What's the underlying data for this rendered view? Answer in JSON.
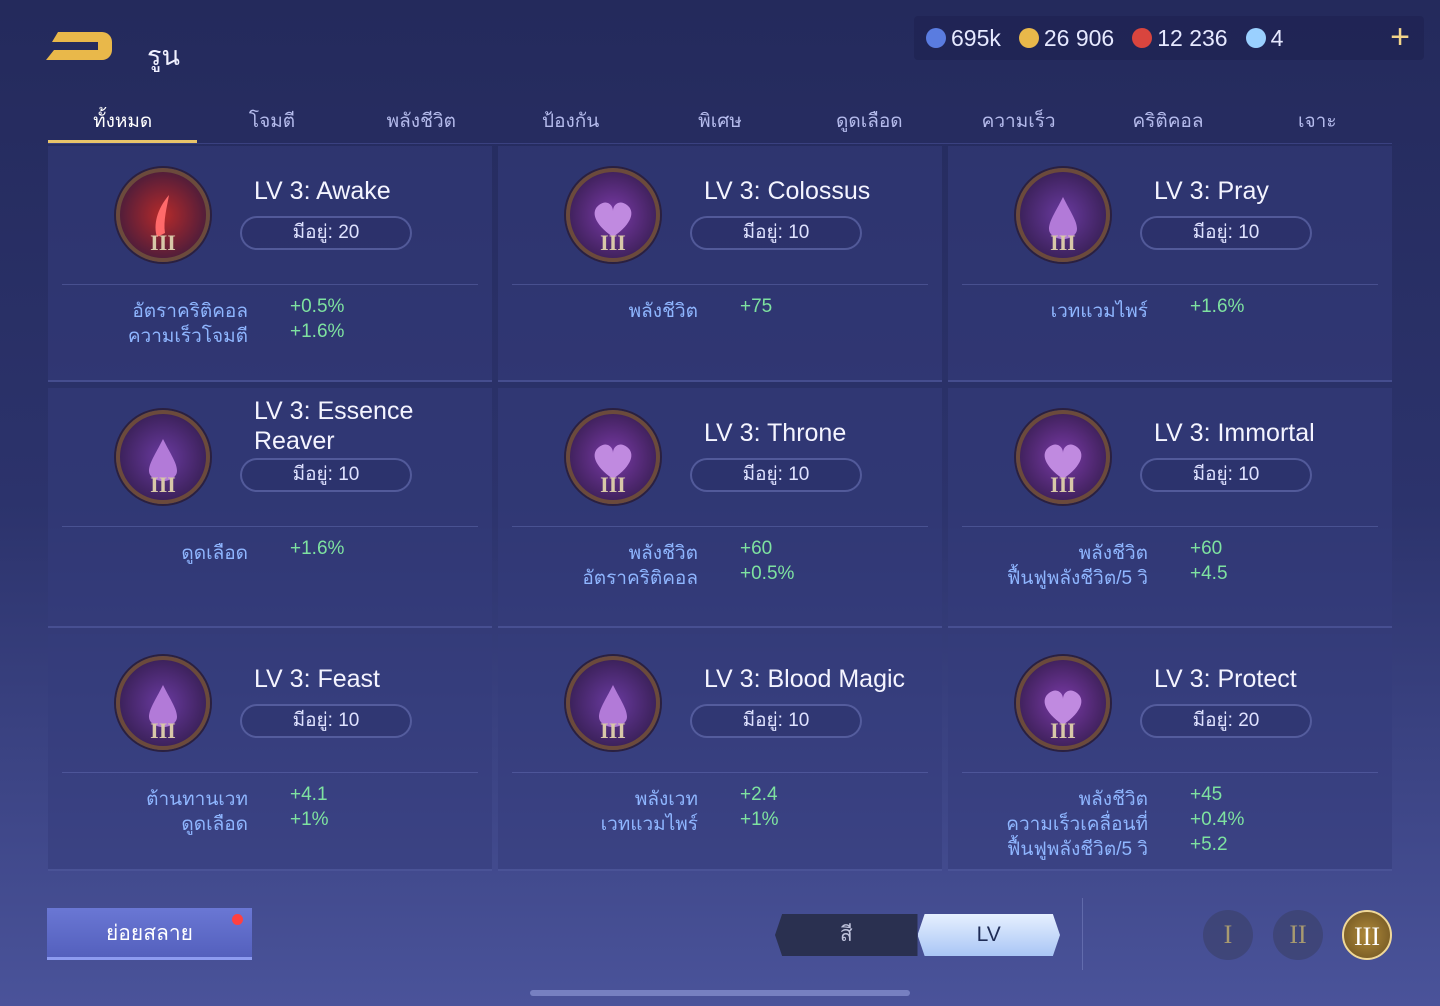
{
  "header": {
    "title": "รูน",
    "resources": [
      {
        "icon": "blue-orb-icon",
        "value": "695k",
        "color": "#5a7ce0"
      },
      {
        "icon": "gold-coin-icon",
        "value": "26 906",
        "color": "#e9b84a"
      },
      {
        "icon": "red-gem-icon",
        "value": "12 236",
        "color": "#d9453e"
      },
      {
        "icon": "blue-card-icon",
        "value": "4",
        "color": "#9ad0ff"
      }
    ],
    "add": "+"
  },
  "tabs": [
    "ทั้งหมด",
    "โจมตี",
    "พลังชีวิต",
    "ป้องกัน",
    "พิเศษ",
    "ดูดเลือด",
    "ความเร็ว",
    "คริติคอล",
    "เจาะ"
  ],
  "active_tab": 0,
  "runes": [
    {
      "name": "LV 3: Awake",
      "owned": "มีอยู่: 20",
      "color": "#b52a2a",
      "icon": "blade-icon",
      "stats": [
        [
          "อัตราคริติคอล",
          "+0.5%"
        ],
        [
          "ความเร็วโจมตี",
          "+1.6%"
        ]
      ]
    },
    {
      "name": "LV 3: Colossus",
      "owned": "มีอยู่: 10",
      "color": "#7a3aa8",
      "icon": "heart-icon",
      "stats": [
        [
          "พลังชีวิต",
          "+75"
        ]
      ]
    },
    {
      "name": "LV 3: Pray",
      "owned": "มีอยู่: 10",
      "color": "#6a3aa0",
      "icon": "drop-icon",
      "stats": [
        [
          "เวทแวมไพร์",
          "+1.6%"
        ]
      ]
    },
    {
      "name": "LV 3: Essence Reaver",
      "owned": "มีอยู่: 10",
      "color": "#6a3aa0",
      "icon": "drop-icon",
      "stats": [
        [
          "ดูดเลือด",
          "+1.6%"
        ]
      ]
    },
    {
      "name": "LV 3: Throne",
      "owned": "มีอยู่: 10",
      "color": "#7a3aa8",
      "icon": "heart-icon",
      "stats": [
        [
          "พลังชีวิต",
          "+60"
        ],
        [
          "อัตราคริติคอล",
          "+0.5%"
        ]
      ]
    },
    {
      "name": "LV 3: Immortal",
      "owned": "มีอยู่: 10",
      "color": "#7a3aa8",
      "icon": "heart-icon",
      "stats": [
        [
          "พลังชีวิต",
          "+60"
        ],
        [
          "ฟื้นฟูพลังชีวิต/5 วิ",
          "+4.5"
        ]
      ]
    },
    {
      "name": "LV 3: Feast",
      "owned": "มีอยู่: 10",
      "color": "#6a3aa0",
      "icon": "drop-icon",
      "stats": [
        [
          "ต้านทานเวท",
          "+4.1"
        ],
        [
          "ดูดเลือด",
          "+1%"
        ]
      ]
    },
    {
      "name": "LV 3: Blood Magic",
      "owned": "มีอยู่: 10",
      "color": "#6a3aa0",
      "icon": "drop-icon",
      "stats": [
        [
          "พลังเวท",
          "+2.4"
        ],
        [
          "เวทแวมไพร์",
          "+1%"
        ]
      ]
    },
    {
      "name": "LV 3: Protect",
      "owned": "มีอยู่: 20",
      "color": "#7a3aa8",
      "icon": "heart-icon",
      "stats": [
        [
          "พลังชีวิต",
          "+45"
        ],
        [
          "ความเร็วเคลื่อนที่",
          "+0.4%"
        ],
        [
          "ฟื้นฟูพลังชีวิต/5 วิ",
          "+5.2"
        ]
      ]
    }
  ],
  "rune_level_label": "III",
  "footer": {
    "disassemble": "ย่อยสลาย",
    "sort_color": "สี",
    "sort_lv": "LV",
    "levels": [
      "I",
      "II",
      "III"
    ],
    "active_level": 2
  }
}
